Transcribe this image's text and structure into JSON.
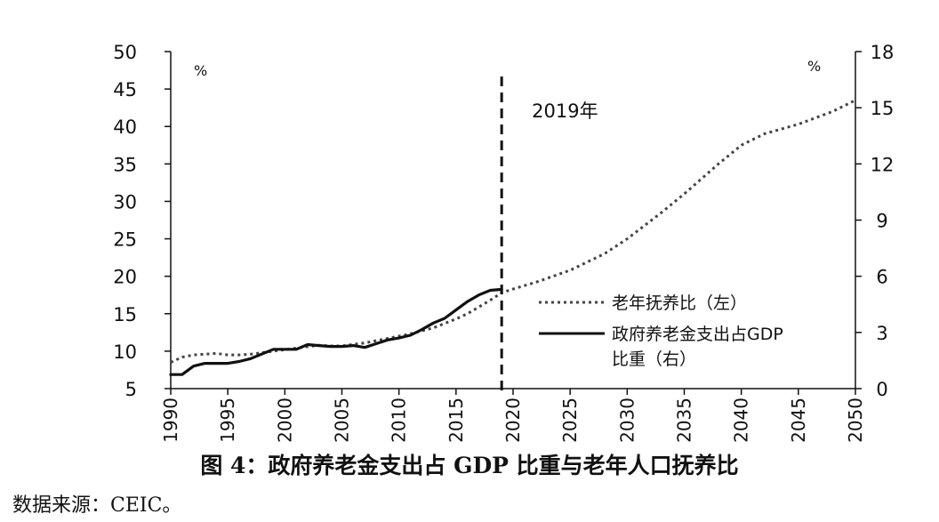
{
  "caption": "图 4：政府养老金支出占 GDP 比重与老年人口抚养比",
  "source": "数据来源：CEIC。",
  "chart_data": {
    "type": "line",
    "x_ticks": [
      "1990",
      "1995",
      "2000",
      "2005",
      "2010",
      "2015",
      "2020",
      "2025",
      "2030",
      "2035",
      "2040",
      "2045",
      "2050"
    ],
    "xlim": [
      1990,
      2050
    ],
    "left_axis": {
      "unit": "%",
      "ylim": [
        5,
        50
      ],
      "ticks": [
        "5",
        "10",
        "15",
        "20",
        "25",
        "30",
        "35",
        "40",
        "45",
        "50"
      ]
    },
    "right_axis": {
      "unit": "%",
      "ylim": [
        0,
        18
      ],
      "ticks": [
        "0",
        "3",
        "6",
        "9",
        "12",
        "15",
        "18"
      ]
    },
    "annotation": {
      "x": 2019,
      "label": "2019年"
    },
    "series": [
      {
        "name": "老年抚养比（左）",
        "axis": "left",
        "style": "dotted",
        "color": "#444444",
        "points": [
          [
            1990,
            8.5
          ],
          [
            1991,
            9.2
          ],
          [
            1992,
            9.5
          ],
          [
            1993,
            9.6
          ],
          [
            1994,
            9.7
          ],
          [
            1995,
            9.5
          ],
          [
            1996,
            9.5
          ],
          [
            1997,
            9.6
          ],
          [
            1998,
            9.8
          ],
          [
            1999,
            10.0
          ],
          [
            2000,
            10.2
          ],
          [
            2001,
            10.4
          ],
          [
            2002,
            10.6
          ],
          [
            2003,
            10.8
          ],
          [
            2004,
            10.7
          ],
          [
            2005,
            10.7
          ],
          [
            2006,
            10.9
          ],
          [
            2007,
            11.1
          ],
          [
            2008,
            11.4
          ],
          [
            2009,
            11.7
          ],
          [
            2010,
            12.0
          ],
          [
            2011,
            12.3
          ],
          [
            2012,
            12.7
          ],
          [
            2013,
            13.1
          ],
          [
            2014,
            13.7
          ],
          [
            2015,
            14.3
          ],
          [
            2016,
            15.0
          ],
          [
            2017,
            15.9
          ],
          [
            2018,
            16.8
          ],
          [
            2019,
            17.8
          ],
          [
            2020,
            18.3
          ],
          [
            2022,
            19.2
          ],
          [
            2025,
            20.8
          ],
          [
            2028,
            23.0
          ],
          [
            2030,
            25.0
          ],
          [
            2033,
            28.5
          ],
          [
            2035,
            31.0
          ],
          [
            2038,
            35.0
          ],
          [
            2040,
            37.5
          ],
          [
            2042,
            39.0
          ],
          [
            2045,
            40.3
          ],
          [
            2048,
            42.0
          ],
          [
            2050,
            43.5
          ]
        ]
      },
      {
        "name": "政府养老金支出占GDP比重（右）",
        "axis": "right",
        "style": "solid",
        "color": "#111111",
        "points": [
          [
            1990,
            0.75
          ],
          [
            1991,
            0.75
          ],
          [
            1992,
            1.2
          ],
          [
            1993,
            1.35
          ],
          [
            1994,
            1.35
          ],
          [
            1995,
            1.35
          ],
          [
            1996,
            1.45
          ],
          [
            1997,
            1.6
          ],
          [
            1998,
            1.85
          ],
          [
            1999,
            2.1
          ],
          [
            2000,
            2.1
          ],
          [
            2001,
            2.1
          ],
          [
            2002,
            2.35
          ],
          [
            2003,
            2.3
          ],
          [
            2004,
            2.25
          ],
          [
            2005,
            2.25
          ],
          [
            2006,
            2.3
          ],
          [
            2007,
            2.2
          ],
          [
            2008,
            2.4
          ],
          [
            2009,
            2.6
          ],
          [
            2010,
            2.7
          ],
          [
            2011,
            2.85
          ],
          [
            2012,
            3.15
          ],
          [
            2013,
            3.5
          ],
          [
            2014,
            3.75
          ],
          [
            2015,
            4.2
          ],
          [
            2016,
            4.65
          ],
          [
            2017,
            5.0
          ],
          [
            2018,
            5.25
          ],
          [
            2019,
            5.3
          ]
        ]
      }
    ]
  }
}
